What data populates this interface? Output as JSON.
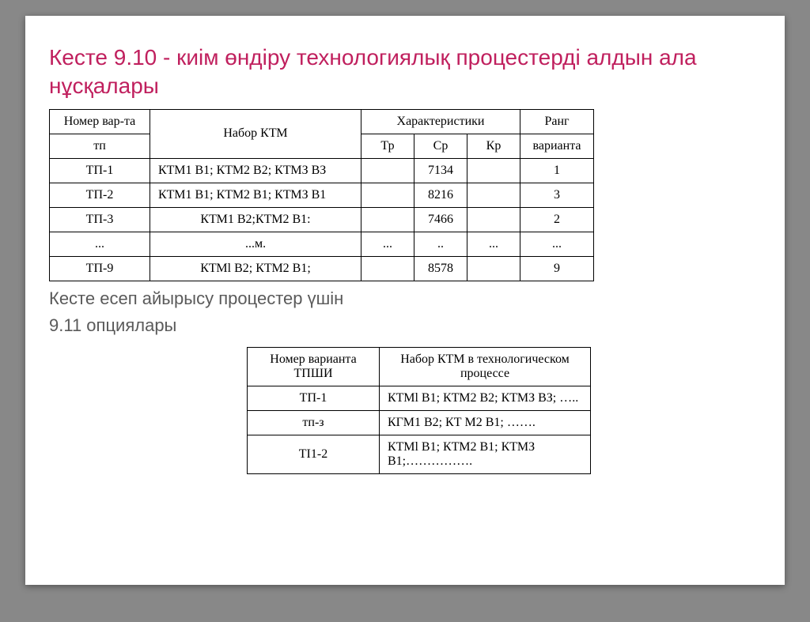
{
  "title": "Кесте 9.10 - киім өндіру технологиялық процестерді алдын ала нұсқалары",
  "subtitle1": "Кесте есеп айырысу процестер үшін",
  "subtitle2": "9.11 опциялары",
  "table1": {
    "headers": {
      "nomer_top": "Номер вар-та",
      "nomer_bot": "тп",
      "nabor": "Набор КТМ",
      "char": "Характеристики",
      "tp": "Тр",
      "cp": "Ср",
      "kp": "Кр",
      "rang_top": "Ранг",
      "rang_bot": "варианта"
    },
    "rows": [
      {
        "n": "ТП-1",
        "nabor": "КТМ1 В1; КТМ2 В2; КТМЗ ВЗ",
        "tp": "",
        "cp": "7134",
        "kp": "",
        "rang": "1"
      },
      {
        "n": "ТП-2",
        "nabor": "КТМ1 В1; КТМ2 В1; КТМЗ В1",
        "tp": "",
        "cp": "8216",
        "kp": "",
        "rang": "3"
      },
      {
        "n": "ТП-3",
        "nabor": "КТМ1 В2;КТМ2 В1:",
        "tp": "",
        "cp": "7466",
        "kp": "",
        "rang": "2"
      },
      {
        "n": "...",
        "nabor": "...м.",
        "tp": "...",
        "cp": "..",
        "kp": "...",
        "rang": "..."
      },
      {
        "n": "ТП-9",
        "nabor": "КТМl В2; КТМ2 В1;",
        "tp": "",
        "cp": "8578",
        "kp": "",
        "rang": "9"
      }
    ]
  },
  "table2": {
    "headers": {
      "col1": "Номер варианта ТПШИ",
      "col2": "Набор КТМ в технологическом процессе"
    },
    "rows": [
      {
        "n": "ТП-1",
        "nabor": "КТМl В1; КТМ2 В2; КТМЗ ВЗ; ….."
      },
      {
        "n": "тп-з",
        "nabor": "КГМ1 В2; КТ М2 В1; ……."
      },
      {
        "n": "ТІ1-2",
        "nabor": "КТМl В1; КТМ2 В1; КТМЗ В1;……………."
      }
    ]
  }
}
